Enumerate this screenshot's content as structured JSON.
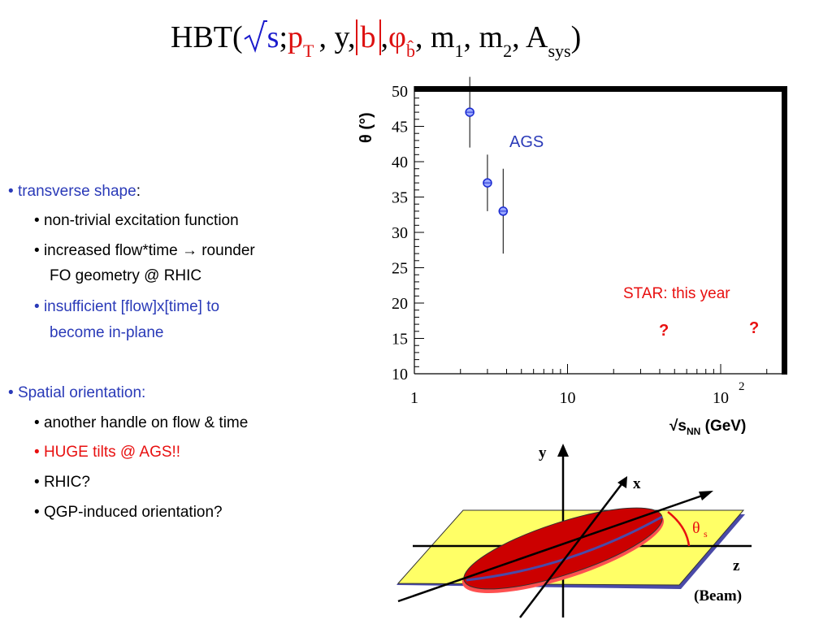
{
  "title": {
    "prefix": "HBT(",
    "s": "s",
    "semicolon": ";",
    "p": "p",
    "T": "T",
    "y": ", y,",
    "b": "b",
    "comma1": ",",
    "phi": "φ",
    "bhat": "b̂",
    "m1": ", m",
    "one": "1",
    "m2": ", m",
    "two": "2",
    "A": ", A",
    "sys": "sys",
    "close": ")"
  },
  "bullets": [
    {
      "level": 1,
      "text": "transverse shape",
      "suffix": ":",
      "color": "blue"
    },
    {
      "level": 2,
      "text": "non-trivial excitation function",
      "color": "black"
    },
    {
      "level": 2,
      "text": "increased flow*time → rounder",
      "color": "black"
    },
    {
      "level": 2,
      "text": "FO geometry @ RHIC",
      "color": "black",
      "continuation": true
    },
    {
      "level": 2,
      "text": "insufficient [flow]x[time] to",
      "color": "blue"
    },
    {
      "level": 2,
      "text": "become in-plane",
      "color": "blue",
      "continuation": true
    },
    {
      "level": 1,
      "text": "Spatial orientation:",
      "color": "blue"
    },
    {
      "level": 2,
      "text": "another handle on flow & time",
      "color": "black"
    },
    {
      "level": 2,
      "text": "HUGE tilts @ AGS!!",
      "color": "red"
    },
    {
      "level": 2,
      "text": "RHIC?",
      "color": "black"
    },
    {
      "level": 2,
      "text": "QGP-induced orientation?",
      "color": "black"
    }
  ],
  "chart_data": {
    "type": "scatter",
    "xscale": "log",
    "xlim": [
      1,
      250
    ],
    "ylim": [
      10,
      50
    ],
    "ylabel": "θ (°)",
    "xlabel": "√sNN (GeV)",
    "xticks": [
      "1",
      "10",
      "10"
    ],
    "xtick_exponent": "2",
    "yticks": [
      "10",
      "15",
      "20",
      "25",
      "30",
      "35",
      "40",
      "45",
      "50"
    ],
    "series": [
      {
        "name": "AGS",
        "x": [
          2.3,
          3.0,
          3.8
        ],
        "y": [
          47,
          37,
          33
        ],
        "yerr_low": [
          42,
          33,
          27
        ],
        "yerr_high": [
          52,
          41,
          39
        ]
      }
    ],
    "annotations": [
      "AGS",
      "STAR: this year",
      "?",
      "?"
    ]
  },
  "diagram": {
    "y_label": "y",
    "x_label": "x",
    "z_label": "z",
    "beam_label": "(Beam)",
    "theta": "θ",
    "theta_sub": "s"
  },
  "colors": {
    "blue": "#2a3ab8",
    "red": "#e81010",
    "plane": "#ffff66",
    "plane_edge": "#4444aa",
    "ellipse": "#cc0000"
  }
}
